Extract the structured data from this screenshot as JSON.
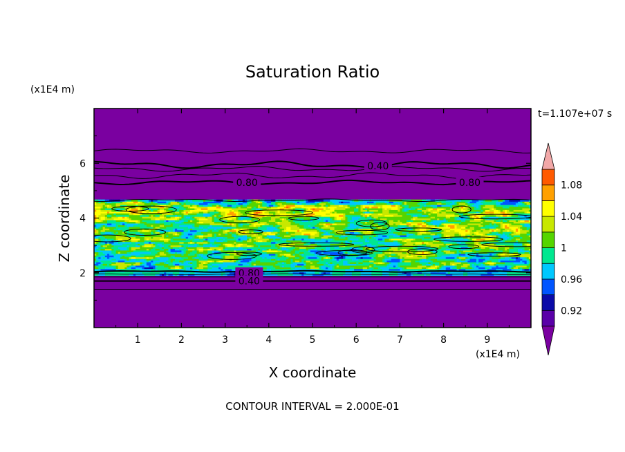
{
  "chart_data": {
    "type": "heatmap",
    "title": "Saturation Ratio",
    "xlabel": "X coordinate",
    "ylabel": "Z coordinate",
    "x_unit": "(x1E4 m)",
    "y_unit": "(x1E4 m)",
    "time_label": "t=1.107e+07 s",
    "footer": "CONTOUR INTERVAL = 2.000E-01",
    "xlim": [
      0,
      10
    ],
    "ylim": [
      0,
      8
    ],
    "x_ticks": [
      "1",
      "2",
      "3",
      "4",
      "5",
      "6",
      "7",
      "8",
      "9"
    ],
    "y_ticks": [
      "2",
      "4",
      "6"
    ],
    "colorbar": {
      "levels": [
        0.9,
        0.92,
        0.94,
        0.96,
        0.98,
        1.0,
        1.02,
        1.04,
        1.06,
        1.08,
        1.1
      ],
      "colors": [
        "#5a00a8",
        "#0a0aa8",
        "#0055ff",
        "#00c8ff",
        "#00e890",
        "#55d500",
        "#c8e800",
        "#ffff00",
        "#ffa000",
        "#ff5a00",
        "#ff2020",
        "#f2a8a8"
      ],
      "under_color": "#7a00a0",
      "labels": [
        "0.92",
        "0.96",
        "1",
        "1.04",
        "1.08"
      ],
      "label_values": [
        0.92,
        0.96,
        1.0,
        1.04,
        1.08
      ]
    },
    "contour_labels": [
      {
        "text": "0.40",
        "x": 6.5,
        "z": 5.9
      },
      {
        "text": "0.80",
        "x": 3.5,
        "z": 5.3
      },
      {
        "text": "0.80",
        "x": 8.6,
        "z": 5.3
      },
      {
        "text": "0.80",
        "x": 3.55,
        "z": 2.0
      },
      {
        "text": "0.40",
        "x": 3.55,
        "z": 1.7
      }
    ],
    "field_description_values": {
      "background": 0.4,
      "moist_layer_z": [
        2.0,
        4.6
      ],
      "peak": 1.1
    }
  }
}
